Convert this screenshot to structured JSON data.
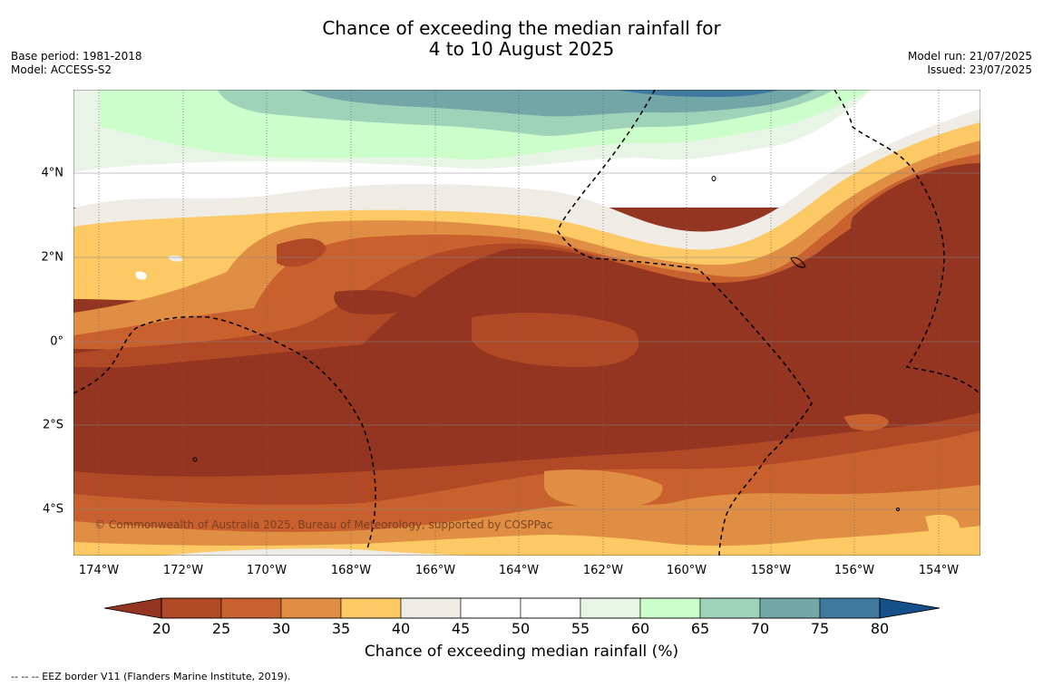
{
  "title": {
    "line1": "Chance of exceeding the median rainfall for",
    "line2": "4 to 10 August 2025"
  },
  "meta_left": {
    "base_period": "Base period: 1981-2018",
    "model": "Model: ACCESS-S2"
  },
  "meta_right": {
    "model_run": "Model run: 21/07/2025",
    "issued": "Issued: 23/07/2025"
  },
  "map": {
    "longitude_ticks": [
      "174°W",
      "172°W",
      "170°W",
      "168°W",
      "166°W",
      "164°W",
      "162°W",
      "160°W",
      "158°W",
      "156°W",
      "154°W"
    ],
    "latitude_ticks": [
      "4°N",
      "2°N",
      "0°",
      "2°S",
      "4°S"
    ],
    "credit": "© Commonwealth of Australia 2025, Bureau of Meteorology, supported by COSPPac"
  },
  "colorbar": {
    "labels": [
      "20",
      "25",
      "30",
      "35",
      "40",
      "45",
      "50",
      "55",
      "60",
      "65",
      "70",
      "75",
      "80"
    ],
    "colors": [
      "#933520",
      "#b14826",
      "#c9612f",
      "#e08e43",
      "#fcc964",
      "#efebe5",
      "#ffffff",
      "#ffffff",
      "#e8f5e6",
      "#cbfecb",
      "#9ed2b9",
      "#72a6a7",
      "#3f799d",
      "#174f88"
    ],
    "title": "Chance of exceeding median rainfall (%)"
  },
  "footer": "--  --  -- EEZ border V11 (Flanders Marine Institute, 2019)."
}
